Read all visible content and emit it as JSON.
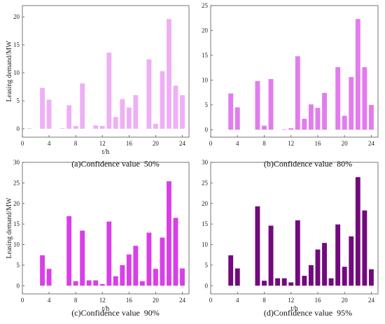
{
  "chart_data": [
    {
      "type": "bar",
      "caption": "(a)Confidence value  50%",
      "xlabel": "t/h",
      "ylabel": "Leasing demand/MW",
      "color": "#eeb0f5",
      "xlim": [
        0,
        25
      ],
      "xticks": [
        0,
        4,
        8,
        12,
        16,
        20,
        24
      ],
      "ylim": [
        -1.5,
        22
      ],
      "yticks": [
        0,
        5,
        10,
        15,
        20
      ],
      "x": [
        1,
        2,
        3,
        4,
        5,
        6,
        7,
        8,
        9,
        10,
        11,
        12,
        13,
        14,
        15,
        16,
        17,
        18,
        19,
        20,
        21,
        22,
        23,
        24
      ],
      "values": [
        0.1,
        0,
        7.3,
        5.2,
        0,
        0.1,
        4.2,
        0.5,
        8.1,
        0,
        0.6,
        0.5,
        13.6,
        2.1,
        5.3,
        3.8,
        6.0,
        0,
        12.4,
        0.9,
        10.3,
        19.6,
        7.7,
        6.0
      ]
    },
    {
      "type": "bar",
      "caption": "(b)Confidence value  80%",
      "xlabel": "",
      "ylabel": "",
      "color": "#e27cee",
      "xlim": [
        0,
        25
      ],
      "xticks": [
        0,
        4,
        8,
        12,
        16,
        20,
        24
      ],
      "ylim": [
        -1.5,
        25
      ],
      "yticks": [
        0,
        5,
        10,
        15,
        20,
        25
      ],
      "x": [
        1,
        2,
        3,
        4,
        5,
        6,
        7,
        8,
        9,
        10,
        11,
        12,
        13,
        14,
        15,
        16,
        17,
        18,
        19,
        20,
        21,
        22,
        23,
        24
      ],
      "values": [
        0,
        0,
        7.3,
        4.5,
        0,
        0,
        9.8,
        0.8,
        10.2,
        0,
        0.1,
        0.3,
        14.8,
        2.2,
        5.1,
        4.4,
        7.4,
        0,
        12.6,
        2.8,
        10.6,
        22.3,
        12.6,
        5.0
      ]
    },
    {
      "type": "bar",
      "caption": "(c)Confidence value  90%",
      "xlabel": "t/h",
      "ylabel": "Leasing demand/MW",
      "color": "#d93ee9",
      "xlim": [
        0,
        25
      ],
      "xticks": [
        0,
        4,
        8,
        12,
        16,
        20,
        24
      ],
      "ylim": [
        -2,
        30
      ],
      "yticks": [
        0,
        5,
        10,
        15,
        20,
        25,
        30
      ],
      "x": [
        1,
        2,
        3,
        4,
        5,
        6,
        7,
        8,
        9,
        10,
        11,
        12,
        13,
        14,
        15,
        16,
        17,
        18,
        19,
        20,
        21,
        22,
        23,
        24
      ],
      "values": [
        0,
        0,
        7.4,
        4.1,
        0,
        0,
        16.9,
        1.1,
        13.4,
        1.3,
        1.3,
        0.4,
        15.6,
        2.3,
        5.0,
        7.6,
        9.7,
        1.1,
        12.9,
        4.1,
        11.7,
        25.4,
        16.5,
        4.2
      ]
    },
    {
      "type": "bar",
      "caption": "(d)Confidence value  95%",
      "xlabel": "t/h",
      "ylabel": "",
      "color": "#720a7d",
      "xlim": [
        0,
        25
      ],
      "xticks": [
        0,
        4,
        8,
        12,
        16,
        20,
        24
      ],
      "ylim": [
        -2,
        30
      ],
      "yticks": [
        0,
        5,
        10,
        15,
        20,
        25,
        30
      ],
      "x": [
        1,
        2,
        3,
        4,
        5,
        6,
        7,
        8,
        9,
        10,
        11,
        12,
        13,
        14,
        15,
        16,
        17,
        18,
        19,
        20,
        21,
        22,
        23,
        24
      ],
      "values": [
        0,
        0,
        7.4,
        4.2,
        0,
        0,
        19.3,
        1.2,
        14.6,
        1.8,
        1.8,
        0.8,
        15.9,
        2.4,
        5.0,
        8.8,
        10.4,
        1.8,
        14.9,
        4.6,
        12.0,
        26.4,
        18.3,
        4.0
      ]
    }
  ]
}
